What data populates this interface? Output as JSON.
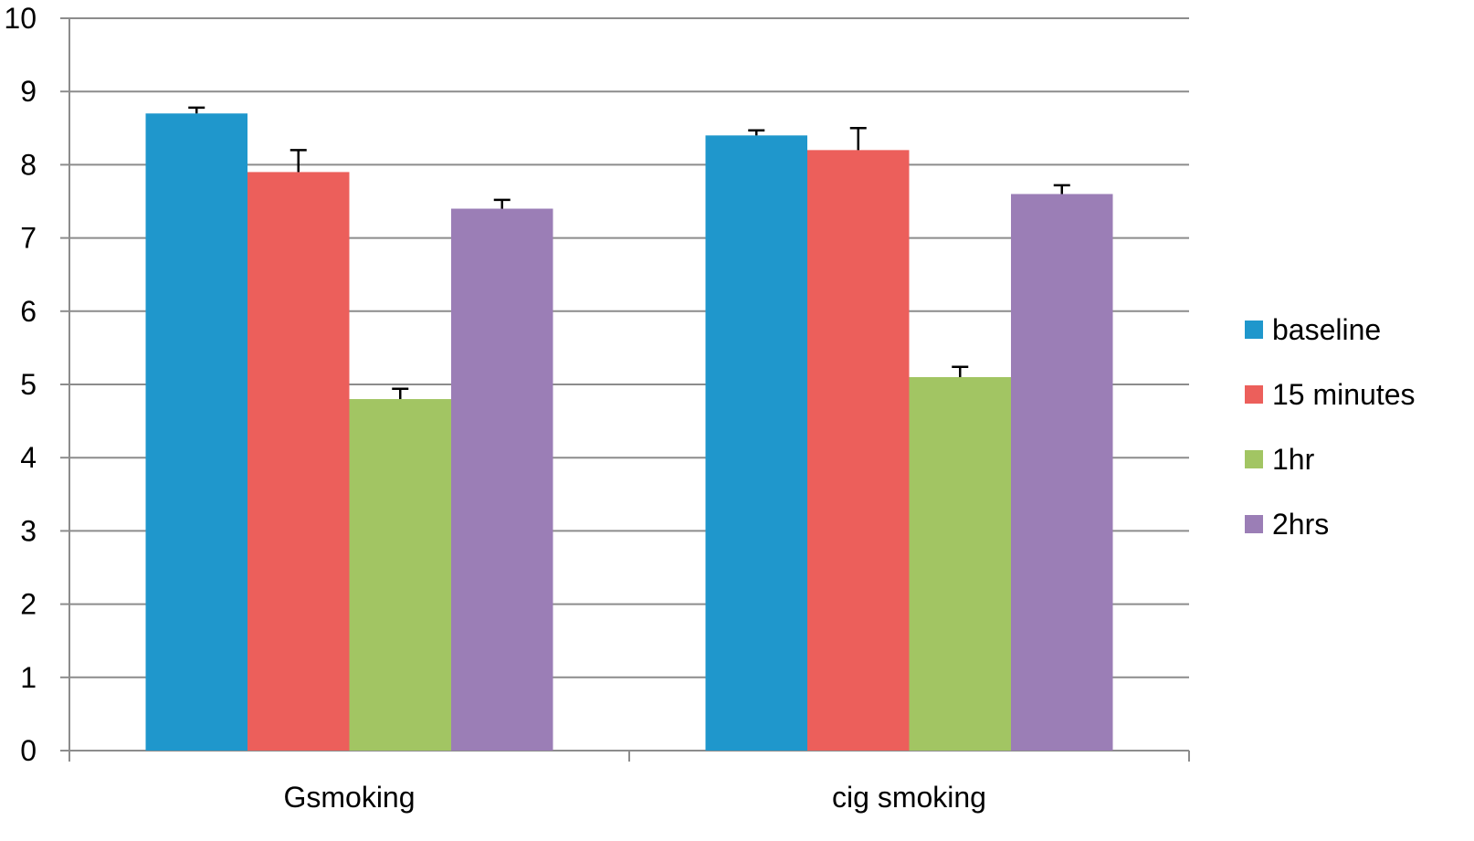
{
  "chart_data": {
    "type": "bar",
    "title": "",
    "xlabel": "",
    "ylabel": "",
    "ylim": [
      0,
      10
    ],
    "yticks": [
      "0",
      "1",
      "2",
      "3",
      "4",
      "5",
      "6",
      "7",
      "8",
      "9",
      "10"
    ],
    "categories": [
      "Gsmoking",
      "cig smoking"
    ],
    "series": [
      {
        "name": "baseline",
        "color": "#1f97cc",
        "values": [
          8.7,
          8.4
        ],
        "errors": [
          0.08,
          0.07
        ]
      },
      {
        "name": "15 minutes",
        "color": "#ec5f5b",
        "values": [
          7.9,
          8.2
        ],
        "errors": [
          0.3,
          0.3
        ]
      },
      {
        "name": "1hr",
        "color": "#a2c563",
        "values": [
          4.8,
          5.1
        ],
        "errors": [
          0.14,
          0.14
        ]
      },
      {
        "name": "2hrs",
        "color": "#9b7eb6",
        "values": [
          7.4,
          7.6
        ],
        "errors": [
          0.12,
          0.12
        ]
      }
    ],
    "grid": true,
    "legend_position": "right"
  }
}
